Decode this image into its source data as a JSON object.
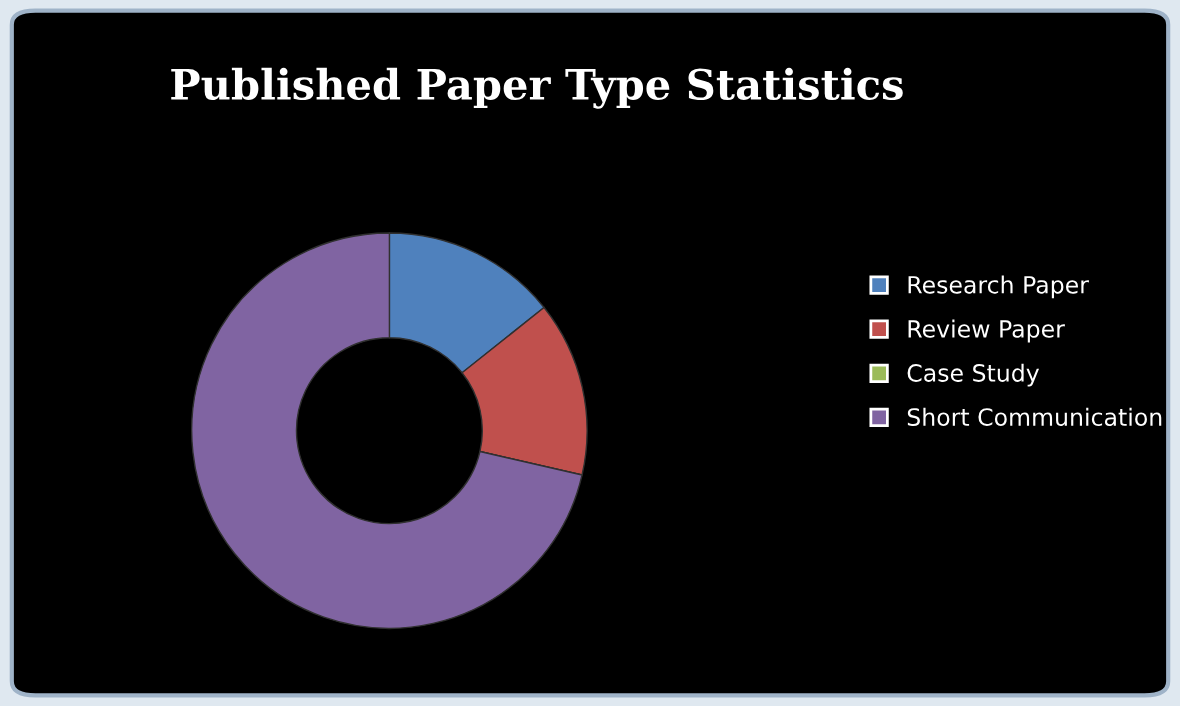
{
  "chart_data": {
    "type": "donut",
    "title": "Published Paper Type Statistics",
    "categories": [
      "Research Paper",
      "Review Paper",
      "Case Study",
      "Short Communication"
    ],
    "values": [
      14.3,
      14.3,
      0,
      71.4
    ],
    "colors": [
      "#4f81bd",
      "#c0504d",
      "#9bbb59",
      "#8064a2"
    ],
    "legend": "right"
  }
}
